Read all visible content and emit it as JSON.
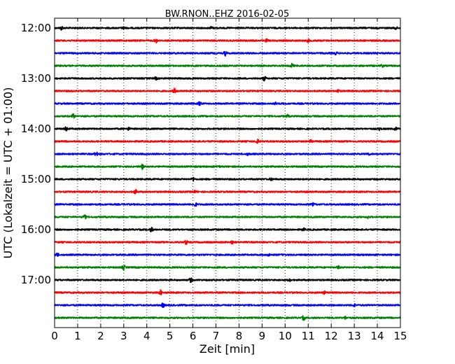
{
  "chart_data": {
    "type": "line",
    "subtype": "seismogram-dayplot",
    "title": "BW.RNON..EHZ 2016-02-05",
    "xlabel": "Zeit  [min]",
    "ylabel": "UTC (Lokalzeit = UTC + 01:00)",
    "xlim": [
      0,
      15
    ],
    "x_ticks": [
      "0",
      "1",
      "2",
      "3",
      "4",
      "5",
      "6",
      "7",
      "8",
      "9",
      "10",
      "11",
      "12",
      "13",
      "14",
      "15"
    ],
    "y_tick_labels": [
      "12:00",
      "13:00",
      "14:00",
      "15:00",
      "16:00",
      "17:00"
    ],
    "grid": "vertical-dotted",
    "trace_interval_minutes": 15,
    "traces": [
      {
        "start": "12:00",
        "color": "#000000",
        "events": [
          0.3,
          3.0,
          6.8,
          14.8
        ]
      },
      {
        "start": "12:15",
        "color": "#ff0000",
        "events": [
          4.4,
          9.2,
          11.0
        ]
      },
      {
        "start": "12:30",
        "color": "#0000ff",
        "events": [
          7.4,
          12.2
        ]
      },
      {
        "start": "12:45",
        "color": "#008000",
        "events": [
          10.3,
          14.2
        ]
      },
      {
        "start": "13:00",
        "color": "#000000",
        "events": [
          9.1,
          4.4
        ]
      },
      {
        "start": "13:15",
        "color": "#ff0000",
        "events": [
          5.2,
          12.3
        ]
      },
      {
        "start": "13:30",
        "color": "#0000ff",
        "events": [
          6.3,
          9.6
        ]
      },
      {
        "start": "13:45",
        "color": "#008000",
        "events": [
          0.8,
          10.1
        ]
      },
      {
        "start": "14:00",
        "color": "#000000",
        "events": [
          0.5,
          3.2,
          14.1,
          14.8
        ]
      },
      {
        "start": "14:15",
        "color": "#ff0000",
        "events": [
          8.8,
          11.1
        ]
      },
      {
        "start": "14:30",
        "color": "#0000ff",
        "events": [
          1.8,
          8.4,
          13.6
        ]
      },
      {
        "start": "14:45",
        "color": "#008000",
        "events": [
          3.8,
          7.1
        ]
      },
      {
        "start": "15:00",
        "color": "#000000",
        "events": [
          6.0,
          9.4
        ]
      },
      {
        "start": "15:15",
        "color": "#ff0000",
        "events": [
          3.5,
          6.1
        ]
      },
      {
        "start": "15:30",
        "color": "#0000ff",
        "events": [
          6.1,
          11.2
        ]
      },
      {
        "start": "15:45",
        "color": "#008000",
        "events": [
          1.3,
          13.6
        ]
      },
      {
        "start": "16:00",
        "color": "#000000",
        "events": [
          4.2,
          10.8
        ]
      },
      {
        "start": "16:15",
        "color": "#ff0000",
        "events": [
          5.7,
          7.7
        ]
      },
      {
        "start": "16:30",
        "color": "#0000ff",
        "events": [
          0.1,
          9.3
        ]
      },
      {
        "start": "16:45",
        "color": "#008000",
        "events": [
          3.0,
          12.3
        ]
      },
      {
        "start": "17:00",
        "color": "#000000",
        "events": [
          5.9,
          10.2
        ]
      },
      {
        "start": "17:15",
        "color": "#ff0000",
        "events": [
          4.6,
          11.7
        ]
      },
      {
        "start": "17:30",
        "color": "#0000ff",
        "events": [
          4.7,
          13.0
        ]
      },
      {
        "start": "17:45",
        "color": "#008000",
        "events": [
          10.8,
          12.6
        ]
      }
    ]
  }
}
